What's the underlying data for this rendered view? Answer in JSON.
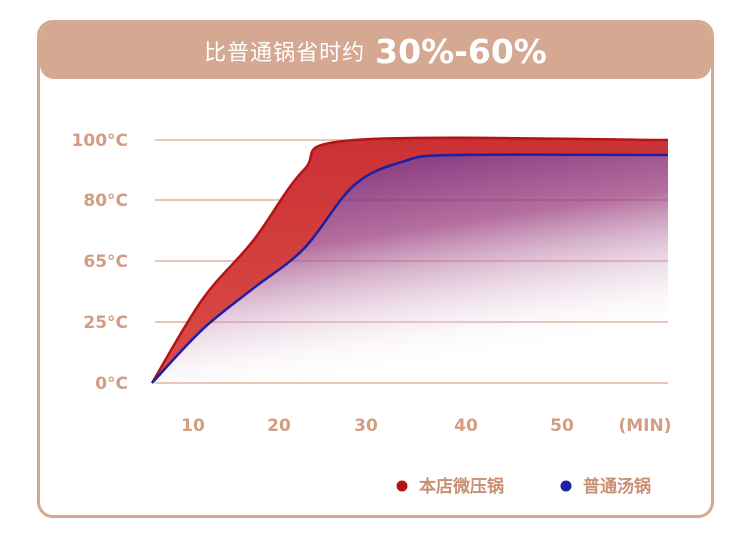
{
  "banner": {
    "text": "比普通锅省时约",
    "highlight": "30%-60%"
  },
  "colors": {
    "frame": "#d5a892",
    "text": "#d29d83",
    "series1": "#b51414",
    "series2": "#1f1fa5"
  },
  "chart_data": {
    "type": "area",
    "title": "比普通锅省时约 30%-60%",
    "y_ticks": [
      "100°C",
      "80°C",
      "65°C",
      "25°C",
      "0°C"
    ],
    "x_ticks": [
      "10",
      "20",
      "30",
      "40",
      "50"
    ],
    "x_unit": "(MIN)",
    "xlim": [
      5,
      56
    ],
    "grid": true,
    "legend_position": "bottom-right",
    "series": [
      {
        "name": "本店微压锅",
        "color": "#b51414",
        "points": [
          [
            5,
            0
          ],
          [
            10,
            40
          ],
          [
            15,
            70
          ],
          [
            20,
            90
          ],
          [
            25,
            100
          ],
          [
            56,
            100
          ]
        ]
      },
      {
        "name": "普通汤锅",
        "color": "#1f1fa5",
        "points": [
          [
            5,
            0
          ],
          [
            10,
            22
          ],
          [
            15,
            47
          ],
          [
            20,
            68
          ],
          [
            25,
            85
          ],
          [
            30,
            93
          ],
          [
            35,
            95
          ],
          [
            56,
            95
          ]
        ]
      }
    ]
  }
}
